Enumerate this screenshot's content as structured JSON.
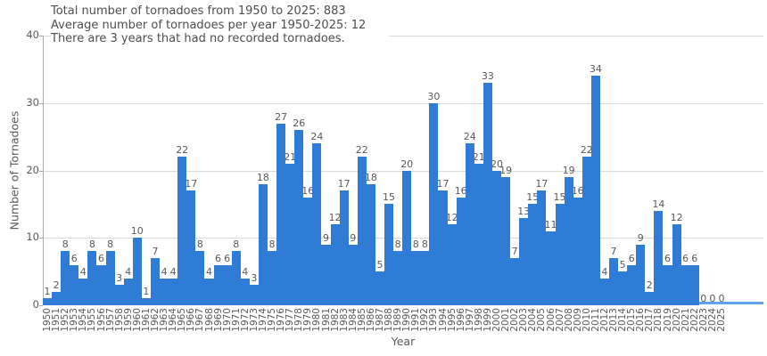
{
  "header": {
    "line1": "Total number of tornadoes from 1950 to 2025: 883",
    "line2": "Average number of tornadoes per year 1950-2025: 12",
    "line3": "There are 3 years that had no recorded tornadoes."
  },
  "chart_data": {
    "type": "bar",
    "title": "",
    "xlabel": "Year",
    "ylabel": "Number of Tornadoes",
    "categories": [
      "1950",
      "1951",
      "1952",
      "1953",
      "1954",
      "1955",
      "1956",
      "1957",
      "1958",
      "1959",
      "1960",
      "1961",
      "1962",
      "1963",
      "1964",
      "1965",
      "1966",
      "1967",
      "1968",
      "1969",
      "1970",
      "1971",
      "1972",
      "1973",
      "1974",
      "1975",
      "1976",
      "1977",
      "1978",
      "1979",
      "1980",
      "1981",
      "1982",
      "1983",
      "1984",
      "1985",
      "1986",
      "1987",
      "1988",
      "1989",
      "1990",
      "1991",
      "1992",
      "1993",
      "1994",
      "1995",
      "1996",
      "1997",
      "1998",
      "1999",
      "2000",
      "2001",
      "2002",
      "2003",
      "2004",
      "2005",
      "2006",
      "2007",
      "2008",
      "2009",
      "2010",
      "2011",
      "2012",
      "2013",
      "2014",
      "2015",
      "2016",
      "2017",
      "2018",
      "2019",
      "2020",
      "2021",
      "2022",
      "2023",
      "2024",
      "2025"
    ],
    "values": [
      1,
      2,
      8,
      6,
      4,
      8,
      6,
      8,
      3,
      4,
      10,
      1,
      7,
      4,
      4,
      22,
      17,
      8,
      4,
      6,
      6,
      8,
      4,
      3,
      18,
      8,
      27,
      21,
      26,
      16,
      24,
      9,
      12,
      17,
      9,
      22,
      18,
      5,
      15,
      8,
      20,
      8,
      8,
      30,
      17,
      12,
      16,
      24,
      21,
      33,
      20,
      19,
      7,
      13,
      15,
      17,
      11,
      15,
      19,
      16,
      22,
      34,
      4,
      7,
      5,
      6,
      9,
      2,
      14,
      6,
      12,
      6,
      6,
      0,
      0,
      0
    ],
    "show_value_labels": true,
    "ylim": [
      0,
      40
    ],
    "yticks": [
      0,
      10,
      20,
      30,
      40
    ],
    "grid": "horizontal",
    "legend": "none",
    "colors": {
      "bar": "#2e7cd6",
      "baseline": "#5fa4e8",
      "gridline": "#d9d9d9",
      "axis": "#ababab",
      "tick_text": "#595959",
      "header_text": "#4d4d4d"
    }
  }
}
